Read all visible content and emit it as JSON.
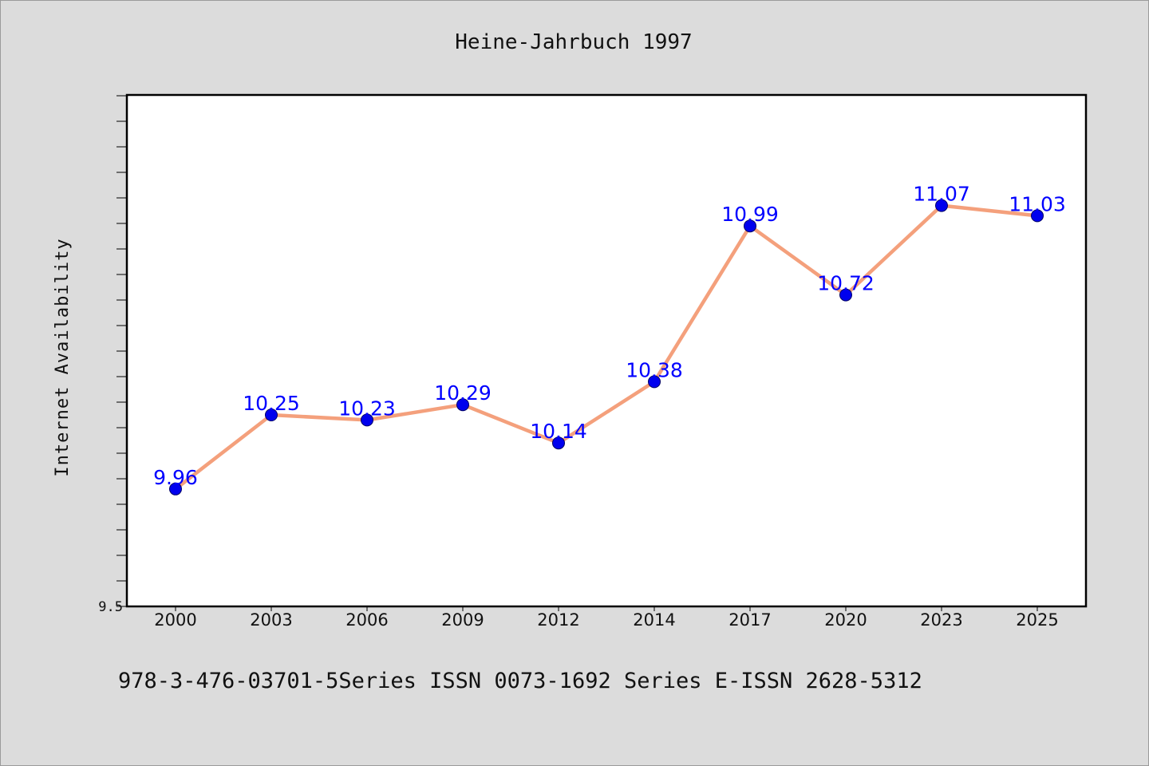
{
  "chart_data": {
    "type": "line",
    "title": "Heine-Jahrbuch 1997",
    "ylabel": "Internet Availability",
    "x": [
      "2000",
      "2003",
      "2006",
      "2009",
      "2012",
      "2014",
      "2017",
      "2020",
      "2023",
      "2025"
    ],
    "series": [
      {
        "values": [
          9.96,
          10.25,
          10.23,
          10.29,
          10.14,
          10.38,
          10.99,
          10.72,
          11.07,
          11.03
        ],
        "labels": [
          "9.96",
          "10.25",
          "10.23",
          "10.29",
          "10.14",
          "10.38",
          "10.99",
          "10.72",
          "11.07",
          "11.03"
        ],
        "line_color": "#f4a07c",
        "marker_color": "#0000ee"
      }
    ],
    "ylim": [
      9.5,
      11.5
    ],
    "yticks_labeled": [
      "9.5"
    ],
    "grid": false,
    "legend": "none",
    "data_label_color": "#0000ff"
  },
  "footer": {
    "text": "978-3-476-03701-5Series ISSN 0073-1692 Series E-ISSN 2628-5312"
  },
  "colors": {
    "background": "#dcdcdc",
    "plot_background": "#ffffff",
    "axis": "#000000"
  }
}
